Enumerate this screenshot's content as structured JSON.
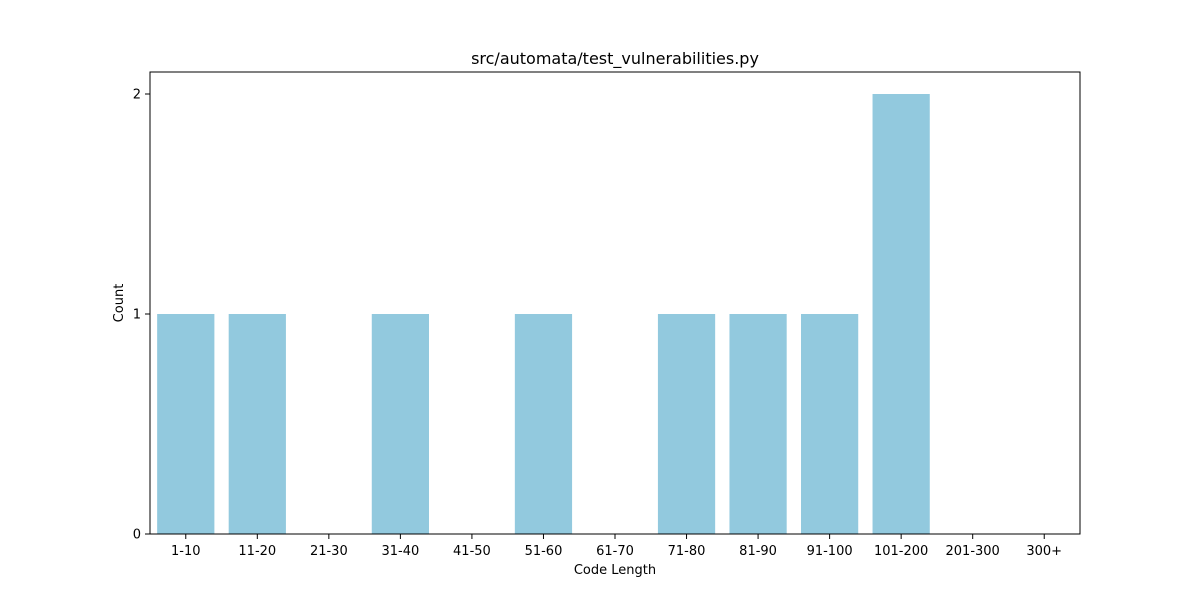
{
  "chart_data": {
    "type": "bar",
    "title": "src/automata/test_vulnerabilities.py",
    "xlabel": "Code Length",
    "ylabel": "Count",
    "categories": [
      "1-10",
      "11-20",
      "21-30",
      "31-40",
      "41-50",
      "51-60",
      "61-70",
      "71-80",
      "81-90",
      "91-100",
      "101-200",
      "201-300",
      "300+"
    ],
    "values": [
      1,
      1,
      0,
      1,
      0,
      1,
      0,
      1,
      1,
      1,
      2,
      0,
      0
    ],
    "ylim": [
      0,
      2.1
    ],
    "yticks": [
      0,
      1,
      2
    ],
    "grid": false,
    "bar_color": "#92c9de"
  }
}
